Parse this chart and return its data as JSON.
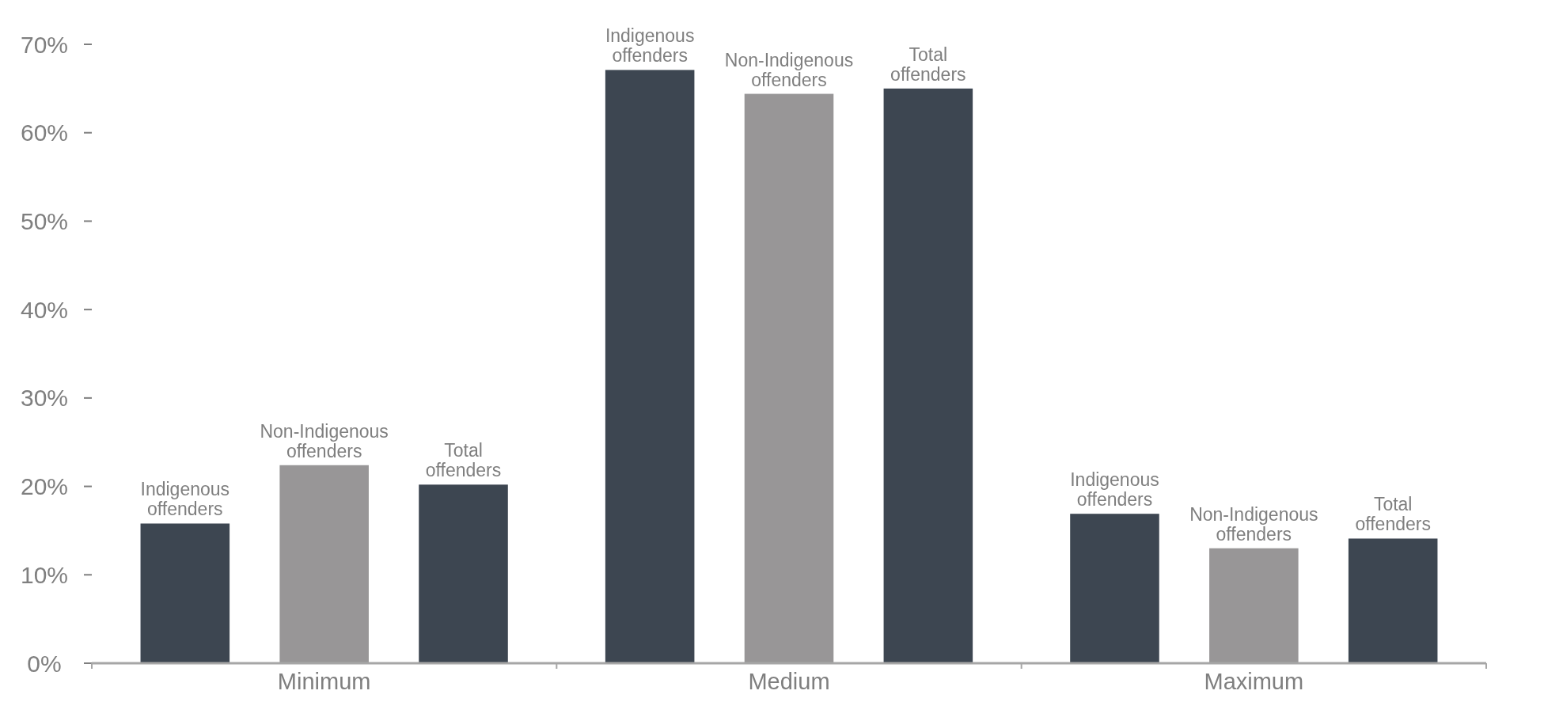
{
  "chart_data": {
    "type": "bar",
    "categories": [
      "Minimum",
      "Medium",
      "Maximum"
    ],
    "series": [
      {
        "name": "Indigenous offenders",
        "color": "#3d4651",
        "values": [
          15.8,
          67.1,
          16.9
        ]
      },
      {
        "name": "Non-Indigenous offenders",
        "color": "#989697",
        "values": [
          22.4,
          64.4,
          13.0
        ]
      },
      {
        "name": "Total offenders",
        "color": "#3d4651",
        "values": [
          20.2,
          65.0,
          14.1
        ]
      }
    ],
    "ylim": [
      0,
      70
    ],
    "yticks": [
      {
        "value": 0,
        "label": "0%"
      },
      {
        "value": 10,
        "label": "10%"
      },
      {
        "value": 20,
        "label": "20%"
      },
      {
        "value": 30,
        "label": "30%"
      },
      {
        "value": 40,
        "label": "40%"
      },
      {
        "value": 50,
        "label": "50%"
      },
      {
        "value": 60,
        "label": "60%"
      },
      {
        "value": 70,
        "label": "70%"
      }
    ],
    "grid": false
  }
}
